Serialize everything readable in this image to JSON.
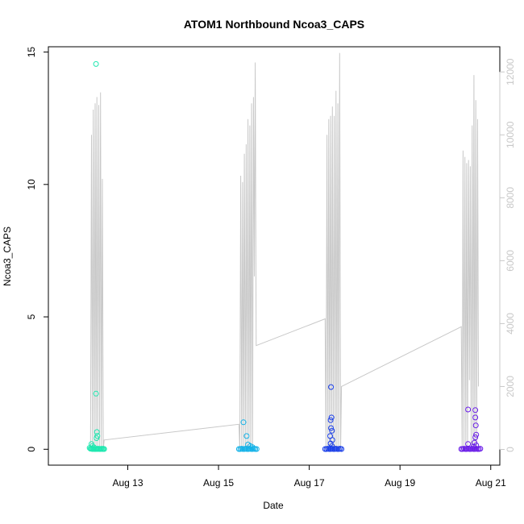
{
  "chart_data": {
    "type": "scatter",
    "title": "ATOM1 Northbound Ncoa3_CAPS",
    "xlabel": "Date",
    "ylabel": "Ncoa3_CAPS",
    "x_ticks": [
      "Aug 13",
      "Aug 15",
      "Aug 17",
      "Aug 19",
      "Aug 21"
    ],
    "x_tick_days": [
      13,
      15,
      17,
      19,
      21
    ],
    "xlim_days": [
      11.25,
      21.2
    ],
    "y_ticks": [
      0,
      5,
      10,
      15
    ],
    "ylim": [
      -0.6,
      15.2
    ],
    "y2_ticks": [
      0,
      2000,
      4000,
      6000,
      8000,
      10000,
      12000
    ],
    "y2lim": [
      -500,
      12800
    ],
    "y2_color": "#c8c8c8",
    "grid": false,
    "legend": "none",
    "line_series": {
      "color": "#c8c8c8",
      "points": [
        [
          12.18,
          0
        ],
        [
          12.2,
          10000
        ],
        [
          12.22,
          0
        ],
        [
          12.24,
          10800
        ],
        [
          12.26,
          0
        ],
        [
          12.28,
          11000
        ],
        [
          12.3,
          0
        ],
        [
          12.32,
          11200
        ],
        [
          12.34,
          0
        ],
        [
          12.36,
          10950
        ],
        [
          12.38,
          0
        ],
        [
          12.4,
          11350
        ],
        [
          12.42,
          0
        ],
        [
          12.44,
          8600
        ],
        [
          12.46,
          0
        ],
        [
          12.48,
          300
        ],
        [
          15.45,
          800
        ],
        [
          15.47,
          0
        ],
        [
          15.49,
          8700
        ],
        [
          15.51,
          0
        ],
        [
          15.53,
          8500
        ],
        [
          15.55,
          0
        ],
        [
          15.57,
          9400
        ],
        [
          15.59,
          0
        ],
        [
          15.61,
          9700
        ],
        [
          15.63,
          0
        ],
        [
          15.65,
          10500
        ],
        [
          15.67,
          0
        ],
        [
          15.69,
          10300
        ],
        [
          15.71,
          0
        ],
        [
          15.73,
          11000
        ],
        [
          15.75,
          0
        ],
        [
          15.77,
          11200
        ],
        [
          15.79,
          5500
        ],
        [
          15.81,
          12300
        ],
        [
          15.83,
          3300
        ],
        [
          17.35,
          4150
        ],
        [
          17.37,
          0
        ],
        [
          17.39,
          10000
        ],
        [
          17.41,
          0
        ],
        [
          17.43,
          10500
        ],
        [
          17.45,
          0
        ],
        [
          17.47,
          10600
        ],
        [
          17.49,
          0
        ],
        [
          17.51,
          10900
        ],
        [
          17.53,
          0
        ],
        [
          17.55,
          10600
        ],
        [
          17.57,
          0
        ],
        [
          17.59,
          11400
        ],
        [
          17.61,
          0
        ],
        [
          17.63,
          11000
        ],
        [
          17.65,
          0
        ],
        [
          17.67,
          12600
        ],
        [
          17.69,
          0
        ],
        [
          17.71,
          2000
        ],
        [
          20.35,
          3900
        ],
        [
          20.37,
          0
        ],
        [
          20.39,
          9500
        ],
        [
          20.41,
          0
        ],
        [
          20.43,
          9300
        ],
        [
          20.45,
          0
        ],
        [
          20.47,
          9100
        ],
        [
          20.49,
          0
        ],
        [
          20.51,
          9200
        ],
        [
          20.53,
          2200
        ],
        [
          20.55,
          9000
        ],
        [
          20.57,
          0
        ],
        [
          20.59,
          10300
        ],
        [
          20.61,
          0
        ],
        [
          20.63,
          11900
        ],
        [
          20.65,
          0
        ],
        [
          20.67,
          11100
        ],
        [
          20.69,
          0
        ],
        [
          20.71,
          10500
        ],
        [
          20.73,
          2000
        ]
      ]
    },
    "series": [
      {
        "color": "#1fe8b0",
        "points": [
          [
            12.3,
            14.55
          ],
          [
            12.3,
            2.1
          ],
          [
            12.32,
            0.65
          ],
          [
            12.33,
            0.5
          ],
          [
            12.31,
            0.42
          ],
          [
            12.2,
            0.2
          ],
          [
            12.22,
            0.12
          ],
          [
            12.25,
            0.08
          ],
          [
            12.16,
            0.05
          ],
          [
            12.18,
            0.02
          ],
          [
            12.2,
            0.02
          ],
          [
            12.22,
            0.01
          ],
          [
            12.24,
            0.02
          ],
          [
            12.26,
            0.01
          ],
          [
            12.28,
            0.01
          ],
          [
            12.3,
            0.01
          ],
          [
            12.32,
            0.02
          ],
          [
            12.34,
            0.01
          ],
          [
            12.36,
            0.02
          ],
          [
            12.38,
            0.01
          ],
          [
            12.4,
            0.01
          ],
          [
            12.42,
            0.02
          ],
          [
            12.44,
            0.01
          ],
          [
            12.46,
            0.02
          ],
          [
            12.48,
            0.01
          ]
        ]
      },
      {
        "color": "#12b2e8",
        "points": [
          [
            15.55,
            1.02
          ],
          [
            15.62,
            0.5
          ],
          [
            15.65,
            0.18
          ],
          [
            15.7,
            0.12
          ],
          [
            15.75,
            0.08
          ],
          [
            15.45,
            0.01
          ],
          [
            15.48,
            0.01
          ],
          [
            15.51,
            0.02
          ],
          [
            15.54,
            0.01
          ],
          [
            15.57,
            0.01
          ],
          [
            15.6,
            0.02
          ],
          [
            15.63,
            0.01
          ],
          [
            15.66,
            0.01
          ],
          [
            15.69,
            0.02
          ],
          [
            15.72,
            0.01
          ],
          [
            15.75,
            0.01
          ],
          [
            15.78,
            0.02
          ],
          [
            15.81,
            0.01
          ],
          [
            15.84,
            0.01
          ]
        ]
      },
      {
        "color": "#1a3ee8",
        "points": [
          [
            17.48,
            2.35
          ],
          [
            17.49,
            1.2
          ],
          [
            17.47,
            1.1
          ],
          [
            17.48,
            0.8
          ],
          [
            17.5,
            0.7
          ],
          [
            17.46,
            0.5
          ],
          [
            17.51,
            0.35
          ],
          [
            17.47,
            0.22
          ],
          [
            17.5,
            0.12
          ],
          [
            17.35,
            0.01
          ],
          [
            17.38,
            0.01
          ],
          [
            17.41,
            0.02
          ],
          [
            17.44,
            0.01
          ],
          [
            17.47,
            0.01
          ],
          [
            17.5,
            0.02
          ],
          [
            17.53,
            0.01
          ],
          [
            17.56,
            0.01
          ],
          [
            17.59,
            0.02
          ],
          [
            17.62,
            0.01
          ],
          [
            17.65,
            0.01
          ],
          [
            17.68,
            0.02
          ],
          [
            17.71,
            0.01
          ]
        ]
      },
      {
        "color": "#6a1de8",
        "points": [
          [
            20.5,
            1.5
          ],
          [
            20.66,
            1.48
          ],
          [
            20.66,
            1.2
          ],
          [
            20.67,
            0.9
          ],
          [
            20.68,
            0.55
          ],
          [
            20.66,
            0.45
          ],
          [
            20.5,
            0.2
          ],
          [
            20.64,
            0.25
          ],
          [
            20.68,
            0.15
          ],
          [
            20.62,
            0.1
          ],
          [
            20.35,
            0.01
          ],
          [
            20.38,
            0.01
          ],
          [
            20.41,
            0.02
          ],
          [
            20.44,
            0.01
          ],
          [
            20.47,
            0.01
          ],
          [
            20.5,
            0.02
          ],
          [
            20.53,
            0.01
          ],
          [
            20.56,
            0.01
          ],
          [
            20.59,
            0.02
          ],
          [
            20.62,
            0.01
          ],
          [
            20.65,
            0.01
          ],
          [
            20.68,
            0.02
          ],
          [
            20.71,
            0.01
          ],
          [
            20.74,
            0.01
          ],
          [
            20.77,
            0.02
          ]
        ]
      }
    ]
  }
}
